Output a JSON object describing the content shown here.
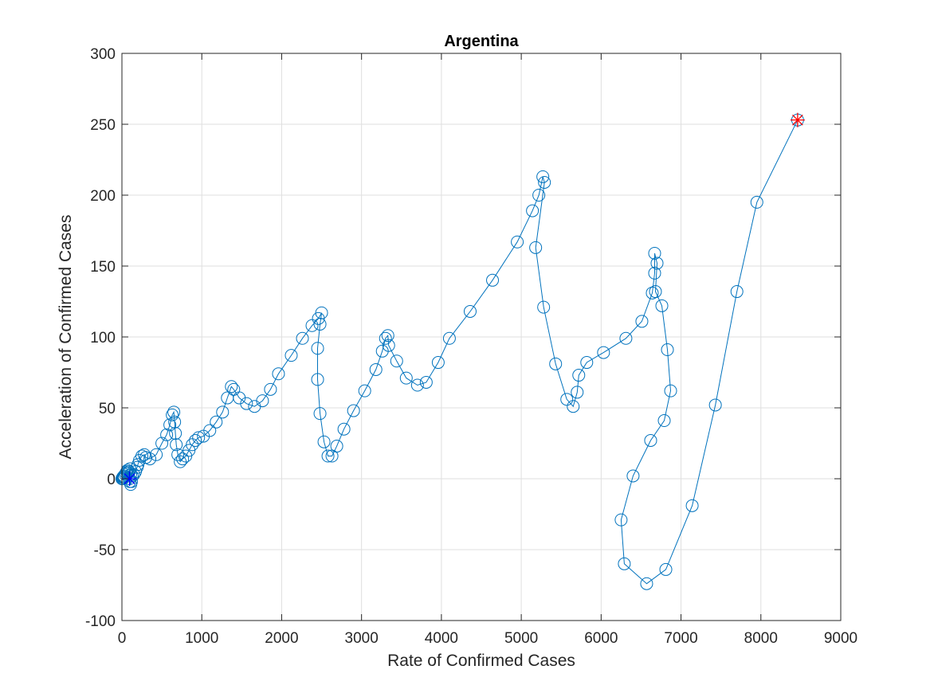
{
  "chart_data": {
    "type": "line",
    "title": "Argentina",
    "xlabel": "Rate of Confirmed Cases",
    "ylabel": "Acceleration of Confirmed Cases",
    "xlim": [
      0,
      9000
    ],
    "ylim": [
      -100,
      300
    ],
    "xticks": [
      0,
      1000,
      2000,
      3000,
      4000,
      5000,
      6000,
      7000,
      8000,
      9000
    ],
    "yticks": [
      -100,
      -50,
      0,
      50,
      100,
      150,
      200,
      250,
      300
    ],
    "xtick_labels": [
      "0",
      "1000",
      "2000",
      "3000",
      "4000",
      "5000",
      "6000",
      "7000",
      "8000",
      "9000"
    ],
    "ytick_labels": [
      "-100",
      "-50",
      "0",
      "50",
      "100",
      "150",
      "200",
      "250",
      "300"
    ],
    "grid": true,
    "colors": {
      "line": "#0072bd",
      "start_marker": "#0000ff",
      "end_marker": "#ff0000"
    },
    "series": [
      {
        "marker": "circle",
        "points": [
          [
            0,
            0
          ],
          [
            5,
            0
          ],
          [
            10,
            1
          ],
          [
            15,
            0
          ],
          [
            20,
            1
          ],
          [
            25,
            2
          ],
          [
            30,
            1
          ],
          [
            40,
            3
          ],
          [
            50,
            4
          ],
          [
            60,
            5
          ],
          [
            70,
            6
          ],
          [
            80,
            4
          ],
          [
            90,
            5
          ],
          [
            100,
            7
          ],
          [
            110,
            3
          ],
          [
            120,
            -2
          ],
          [
            110,
            -4
          ],
          [
            100,
            -2
          ],
          [
            95,
            0
          ],
          [
            130,
            2
          ],
          [
            150,
            3
          ],
          [
            170,
            5
          ],
          [
            190,
            8
          ],
          [
            200,
            10
          ],
          [
            220,
            13
          ],
          [
            250,
            16
          ],
          [
            280,
            17
          ],
          [
            300,
            15
          ],
          [
            350,
            14
          ],
          [
            430,
            17
          ],
          [
            500,
            25
          ],
          [
            560,
            31
          ],
          [
            600,
            38
          ],
          [
            630,
            45
          ],
          [
            650,
            47
          ],
          [
            660,
            40
          ],
          [
            670,
            32
          ],
          [
            680,
            24
          ],
          [
            700,
            17
          ],
          [
            730,
            12
          ],
          [
            760,
            14
          ],
          [
            800,
            16
          ],
          [
            840,
            20
          ],
          [
            880,
            24
          ],
          [
            920,
            27
          ],
          [
            960,
            29
          ],
          [
            1020,
            30
          ],
          [
            1100,
            34
          ],
          [
            1180,
            40
          ],
          [
            1260,
            47
          ],
          [
            1320,
            57
          ],
          [
            1370,
            65
          ],
          [
            1400,
            63
          ],
          [
            1470,
            57
          ],
          [
            1560,
            53
          ],
          [
            1660,
            51
          ],
          [
            1760,
            55
          ],
          [
            1860,
            63
          ],
          [
            1960,
            74
          ],
          [
            2120,
            87
          ],
          [
            2260,
            99
          ],
          [
            2380,
            108
          ],
          [
            2460,
            113
          ],
          [
            2500,
            117
          ],
          [
            2480,
            109
          ],
          [
            2450,
            92
          ],
          [
            2450,
            70
          ],
          [
            2480,
            46
          ],
          [
            2530,
            26
          ],
          [
            2580,
            16
          ],
          [
            2630,
            16
          ],
          [
            2690,
            23
          ],
          [
            2780,
            35
          ],
          [
            2900,
            48
          ],
          [
            3040,
            62
          ],
          [
            3180,
            77
          ],
          [
            3260,
            90
          ],
          [
            3300,
            99
          ],
          [
            3330,
            101
          ],
          [
            3340,
            94
          ],
          [
            3440,
            83
          ],
          [
            3560,
            71
          ],
          [
            3700,
            66
          ],
          [
            3810,
            68
          ],
          [
            3960,
            82
          ],
          [
            4100,
            99
          ],
          [
            4360,
            118
          ],
          [
            4640,
            140
          ],
          [
            4950,
            167
          ],
          [
            5140,
            189
          ],
          [
            5220,
            200
          ],
          [
            5270,
            213
          ],
          [
            5290,
            209
          ],
          [
            5180,
            163
          ],
          [
            5280,
            121
          ],
          [
            5430,
            81
          ],
          [
            5570,
            56
          ],
          [
            5650,
            51
          ],
          [
            5700,
            61
          ],
          [
            5720,
            73
          ],
          [
            5820,
            82
          ],
          [
            6030,
            89
          ],
          [
            6310,
            99
          ],
          [
            6510,
            111
          ],
          [
            6640,
            131
          ],
          [
            6670,
            145
          ],
          [
            6670,
            159
          ],
          [
            6700,
            152
          ],
          [
            6680,
            132
          ],
          [
            6760,
            122
          ],
          [
            6830,
            91
          ],
          [
            6870,
            62
          ],
          [
            6790,
            41
          ],
          [
            6620,
            27
          ],
          [
            6400,
            2
          ],
          [
            6250,
            -29
          ],
          [
            6290,
            -60
          ],
          [
            6570,
            -74
          ],
          [
            6810,
            -64
          ],
          [
            7140,
            -19
          ],
          [
            7430,
            52
          ],
          [
            7700,
            132
          ],
          [
            7950,
            195
          ],
          [
            8460,
            253
          ]
        ]
      }
    ],
    "start_point": [
      95,
      0
    ],
    "end_point": [
      8460,
      253
    ]
  }
}
